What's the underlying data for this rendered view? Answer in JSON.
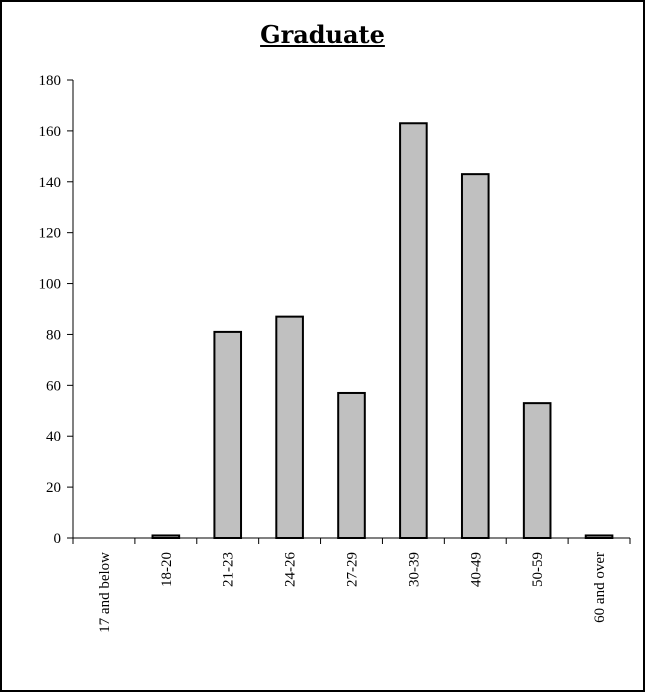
{
  "chart_data": {
    "type": "bar",
    "title": "Graduate",
    "xlabel": "",
    "ylabel": "",
    "categories": [
      "17 and below",
      "18-20",
      "21-23",
      "24-26",
      "27-29",
      "30-39",
      "40-49",
      "50-59",
      "60 and over"
    ],
    "values": [
      0,
      1,
      81,
      87,
      57,
      163,
      143,
      53,
      1
    ],
    "ylim": [
      0,
      180
    ],
    "yticks": [
      0,
      20,
      40,
      60,
      80,
      100,
      120,
      140,
      160,
      180
    ],
    "grid": false,
    "legend": "none",
    "bar_color": "#c0c0c0",
    "bar_edge_color": "#000000"
  }
}
